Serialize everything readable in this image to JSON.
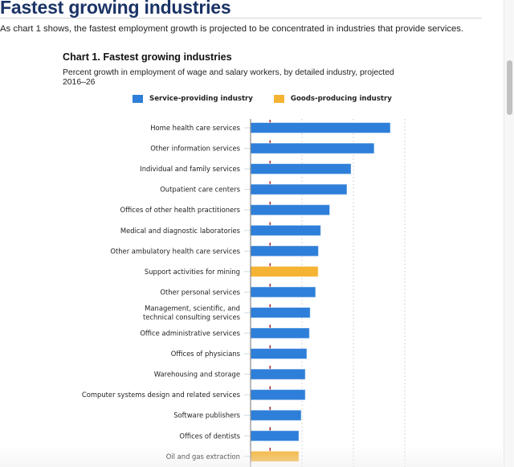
{
  "page": {
    "title": "Fastest growing industries",
    "intro": "As chart 1 shows, the fastest employment growth is projected to be concentrated in industries that provide services."
  },
  "colors": {
    "title": "#1b3366",
    "service": "#2e7fd9",
    "goods": "#f5b334",
    "reference_line": "#a52a2a"
  },
  "chart_data": {
    "type": "bar",
    "orientation": "horizontal",
    "title": "Chart 1. Fastest growing industries",
    "subtitle": "Percent growth in employment of wage and salary workers, by detailed industry, projected 2016–26",
    "xlabel": "",
    "ylabel": "",
    "xlim": [
      0,
      60
    ],
    "grid": true,
    "gridlines_at": [
      20,
      40,
      60
    ],
    "reference_line": {
      "value": 7.6,
      "style": "dashed"
    },
    "legend": {
      "placement": "top",
      "entries": [
        {
          "key": "service",
          "label": "Service-providing industry"
        },
        {
          "key": "goods",
          "label": "Goods-producing industry"
        }
      ]
    },
    "categories": [
      "Home health care services",
      "Other information services",
      "Individual and family services",
      "Outpatient care centers",
      "Offices of other health practitioners",
      "Medical and diagnostic laboratories",
      "Other ambulatory health care services",
      "Support activities for mining",
      "Other personal services",
      "Management, scientific, and technical consulting services",
      "Office administrative services",
      "Offices of physicians",
      "Warehousing and storage",
      "Computer systems design and related services",
      "Software publishers",
      "Offices of dentists",
      "Oil and gas extraction"
    ],
    "label_lines": [
      [
        "Home health care services"
      ],
      [
        "Other information services"
      ],
      [
        "Individual and family services"
      ],
      [
        "Outpatient care centers"
      ],
      [
        "Offices of other health practitioners"
      ],
      [
        "Medical and diagnostic laboratories"
      ],
      [
        "Other ambulatory health care services"
      ],
      [
        "Support activities for mining"
      ],
      [
        "Other personal services"
      ],
      [
        "Management, scientific, and",
        "technical consulting services"
      ],
      [
        "Office administrative services"
      ],
      [
        "Offices of physicians"
      ],
      [
        "Warehousing and storage"
      ],
      [
        "Computer systems design and related services"
      ],
      [
        "Software publishers"
      ],
      [
        "Offices of dentists"
      ],
      [
        "Oil and gas extraction"
      ]
    ],
    "values": [
      54.4,
      48.1,
      39.1,
      37.5,
      30.8,
      27.3,
      26.4,
      26.3,
      25.3,
      23.2,
      22.9,
      21.9,
      21.3,
      21.3,
      19.7,
      18.8,
      18.8
    ],
    "types": [
      "service",
      "service",
      "service",
      "service",
      "service",
      "service",
      "service",
      "goods",
      "service",
      "service",
      "service",
      "service",
      "service",
      "service",
      "service",
      "service",
      "goods"
    ]
  }
}
